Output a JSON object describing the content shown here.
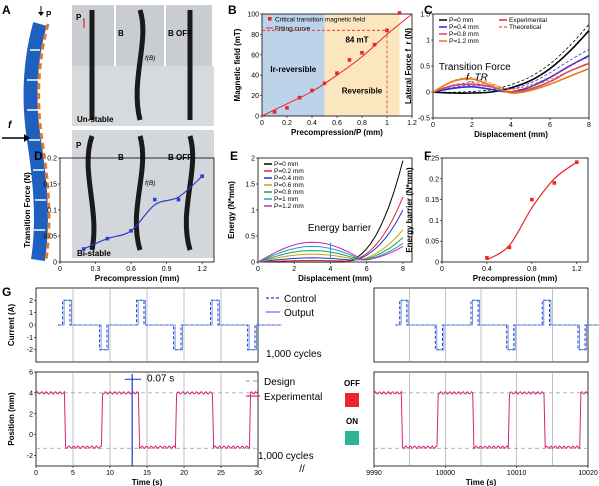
{
  "panel_letters": {
    "a": "A",
    "b": "B",
    "c": "C",
    "d": "D",
    "e": "E",
    "f": "F",
    "g": "G"
  },
  "panel_a": {
    "p_label": "P",
    "force_label": "f",
    "unstable_label": "Un-stable",
    "bistable_label": "Bi-stable",
    "b_arrow_label": "B",
    "b_off_label": "B OFF",
    "fb_label": "f(B)",
    "colors": {
      "unstable": "#1f5fbf",
      "bistable": "#e07a2a",
      "beam": "#1a1a1a",
      "photo_bg": "#c9cdd2"
    }
  },
  "chart_data": [
    {
      "id": "B",
      "type": "scatter",
      "xlabel": "Precompression/P (mm)",
      "ylabel": "Magnetic field (mT)",
      "xlim": [
        0,
        1.2
      ],
      "ylim": [
        0,
        100
      ],
      "xticks": [
        0.0,
        0.2,
        0.4,
        0.6,
        0.8,
        1.0,
        1.2
      ],
      "yticks": [
        0,
        20,
        40,
        60,
        80,
        100
      ],
      "series": [
        {
          "name": "Critical transition magnetic field",
          "style": "markers",
          "x": [
            0.1,
            0.2,
            0.3,
            0.4,
            0.5,
            0.6,
            0.7,
            0.8,
            0.9,
            1.0,
            1.1
          ],
          "y": [
            4,
            8,
            18,
            25,
            32,
            42,
            55,
            62,
            70,
            84,
            102
          ]
        },
        {
          "name": "Fitting curve",
          "style": "line",
          "x": [
            0.0,
            0.2,
            0.4,
            0.6,
            0.8,
            1.0,
            1.2
          ],
          "y": [
            0,
            12,
            24,
            40,
            58,
            80,
            104
          ]
        }
      ],
      "regions": [
        {
          "label": "Ir-reversible",
          "x": [
            0,
            0.5
          ]
        },
        {
          "label": "Reversible",
          "x": [
            0.5,
            1.1
          ]
        }
      ],
      "annotation": {
        "text": "84 mT",
        "x": 1.0,
        "y": 84
      },
      "colors": {
        "markers": "#e8262b",
        "irreversible": "#bcd3ea",
        "reversible": "#fbe6bf"
      }
    },
    {
      "id": "C",
      "type": "line",
      "xlabel": "Displacement (mm)",
      "ylabel": "Lateral Force f_r (N)",
      "xlim": [
        0,
        8
      ],
      "ylim": [
        -0.5,
        1.5
      ],
      "xticks": [
        0,
        2,
        4,
        6,
        8
      ],
      "yticks": [
        -0.5,
        0.0,
        0.5,
        1.0,
        1.5
      ],
      "legend": [
        "P=0 mm",
        "P=0.4 mm",
        "P=0.8 mm",
        "P=1.2 mm",
        "Experimental",
        "Theoretical"
      ],
      "series": [
        {
          "name": "P=0 mm",
          "color": "#000000",
          "x": [
            0,
            1,
            2,
            3,
            4,
            5,
            6,
            7,
            8
          ],
          "y": [
            0.0,
            -0.02,
            -0.02,
            0.0,
            0.08,
            0.22,
            0.45,
            0.78,
            1.18
          ]
        },
        {
          "name": "P=0.4 mm",
          "color": "#1b37d6",
          "x": [
            0,
            1,
            2,
            3,
            4,
            5,
            6,
            7,
            8
          ],
          "y": [
            0.0,
            0.07,
            0.1,
            0.05,
            0.0,
            0.1,
            0.28,
            0.5,
            0.7
          ]
        },
        {
          "name": "P=0.8 mm",
          "color": "#e23c6a",
          "x": [
            0,
            1,
            2,
            3,
            4,
            5,
            6,
            7,
            8
          ],
          "y": [
            0.0,
            0.12,
            0.15,
            0.1,
            0.0,
            0.06,
            0.2,
            0.4,
            0.55
          ]
        },
        {
          "name": "P=1.2 mm",
          "color": "#e47a18",
          "x": [
            0,
            1,
            2,
            3,
            4,
            5,
            6,
            7,
            8
          ],
          "y": [
            0.0,
            0.2,
            0.25,
            0.12,
            -0.02,
            0.03,
            0.15,
            0.3,
            0.45
          ]
        }
      ],
      "annotations": [
        "Transition Force",
        "f_TR"
      ]
    },
    {
      "id": "D",
      "type": "scatter",
      "xlabel": "Precompression (mm)",
      "ylabel": "Transition Force (N)",
      "xlim": [
        0,
        1.3
      ],
      "ylim": [
        0,
        0.2
      ],
      "xticks": [
        0.0,
        0.3,
        0.6,
        0.9,
        1.2
      ],
      "yticks": [
        0.0,
        0.05,
        0.1,
        0.15,
        0.2
      ],
      "x": [
        0.2,
        0.4,
        0.6,
        0.8,
        1.0,
        1.2
      ],
      "y": [
        0.025,
        0.045,
        0.06,
        0.12,
        0.12,
        0.165
      ],
      "color": "#2b3fd0"
    },
    {
      "id": "E",
      "type": "line",
      "xlabel": "Displacement (mm)",
      "ylabel": "Energy (N*mm)",
      "xlim": [
        0,
        8.5
      ],
      "ylim": [
        0,
        2.0
      ],
      "xticks": [
        0,
        2,
        4,
        6,
        8
      ],
      "yticks": [
        0.0,
        0.5,
        1.0,
        1.5,
        2.0
      ],
      "annotation": "Energy barrier",
      "series": [
        {
          "name": "P=0 mm",
          "color": "#000000",
          "peak": 0.0,
          "end": 1.95
        },
        {
          "name": "P=0.2 mm",
          "color": "#e8262b",
          "peak": 0.03,
          "end": 1.25
        },
        {
          "name": "P=0.4 mm",
          "color": "#1b37d6",
          "peak": 0.08,
          "end": 1.0
        },
        {
          "name": "P=0.6 mm",
          "color": "#c8a400",
          "peak": 0.15,
          "end": 0.62
        },
        {
          "name": "P=0.8 mm",
          "color": "#19a34a",
          "peak": 0.22,
          "end": 0.47
        },
        {
          "name": "P=1 mm",
          "color": "#1e9fd6",
          "peak": 0.3,
          "end": 0.36
        },
        {
          "name": "P=1.2 mm",
          "color": "#c22aa8",
          "peak": 0.38,
          "end": 0.3
        }
      ]
    },
    {
      "id": "F",
      "type": "scatter",
      "xlabel": "Precompression (mm)",
      "ylabel": "Energy barrier (N*mm)",
      "xlim": [
        0,
        1.3
      ],
      "ylim": [
        0,
        0.25
      ],
      "xticks": [
        0.0,
        0.4,
        0.8,
        1.2
      ],
      "yticks": [
        0.0,
        0.05,
        0.1,
        0.15,
        0.2,
        0.25
      ],
      "x": [
        0.4,
        0.6,
        0.8,
        1.0,
        1.2
      ],
      "y": [
        0.01,
        0.035,
        0.15,
        0.19,
        0.24
      ],
      "color": "#e8262b"
    },
    {
      "id": "G-top",
      "type": "line",
      "ylabel": "Current (A)",
      "ylim": [
        -3,
        3
      ],
      "yticks": [
        -2,
        -1,
        0,
        1,
        2
      ],
      "legend": [
        "Control",
        "Output"
      ],
      "annotation": "1,000 cycles"
    },
    {
      "id": "G-bottom",
      "type": "line",
      "xlabel": "Time (s)",
      "ylabel": "Position (mm)",
      "ylim": [
        -3,
        6
      ],
      "yticks": [
        -2,
        0,
        2,
        4,
        6
      ],
      "xticks": [
        0,
        5,
        10,
        15,
        20,
        25,
        30,
        9990,
        10000,
        10010,
        10020
      ],
      "legend": [
        "Design",
        "Experimental"
      ],
      "annotations": [
        "0.07 s",
        "OFF",
        "ON",
        "1,000 cycles"
      ]
    }
  ]
}
